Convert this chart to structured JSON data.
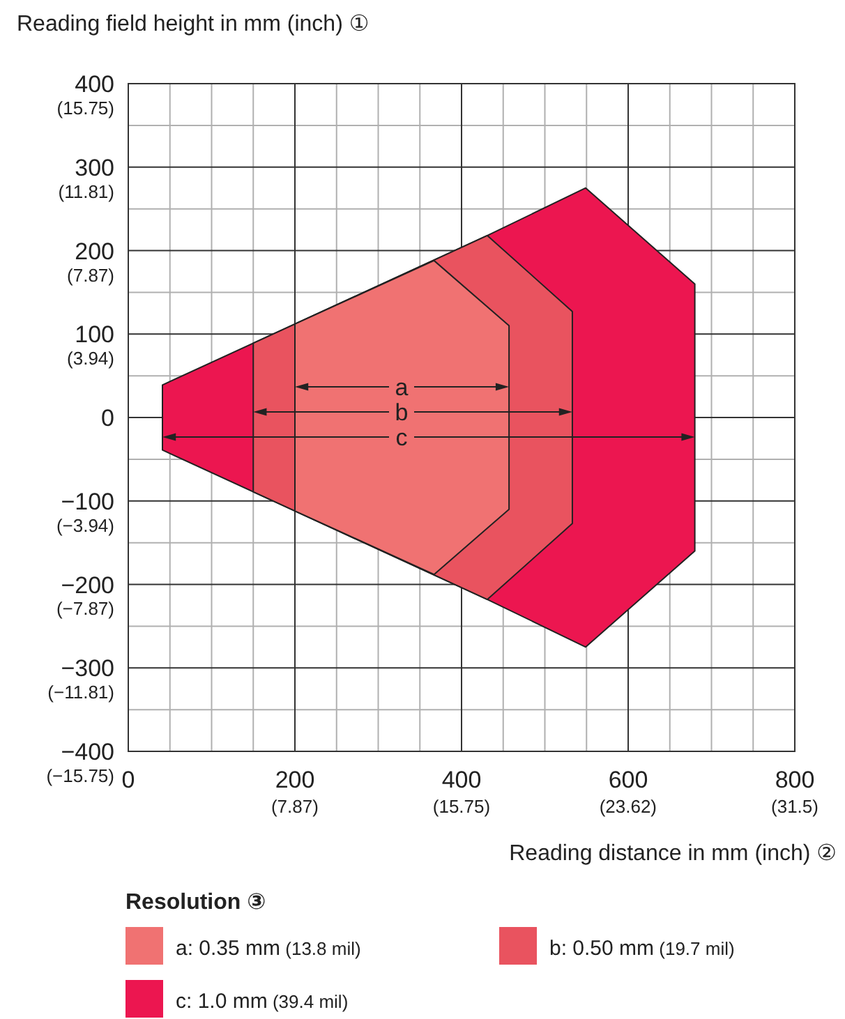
{
  "chart_data": {
    "type": "area",
    "xlabel": "Reading distance in mm (inch) ②",
    "ylabel": "Reading field height in mm (inch) ①",
    "legend_title": "Resolution ③",
    "xlim": [
      0,
      800
    ],
    "ylim": [
      -400,
      400
    ],
    "xticks": [
      0,
      200,
      400,
      600,
      800
    ],
    "yticks": [
      {
        "value": -400,
        "label": "−400"
      },
      {
        "value": -300,
        "label": "−300"
      },
      {
        "value": -200,
        "label": "−200"
      },
      {
        "value": -100,
        "label": "−100"
      },
      0,
      100,
      200,
      300,
      400
    ],
    "x2lim": [
      0,
      31.5
    ],
    "x2ticks": [
      {
        "value": 7.87,
        "label": "(7.87)"
      },
      {
        "value": 15.75,
        "label": "(15.75)"
      },
      {
        "value": 23.62,
        "label": "(23.62)"
      },
      {
        "value": 31.5,
        "label": "(31.5)"
      }
    ],
    "y2lim": [
      -15.75,
      15.75
    ],
    "y2ticks": [
      {
        "value": -15.75,
        "label": "(−15.75)"
      },
      {
        "value": -11.81,
        "label": "(−11.81)"
      },
      {
        "value": -7.87,
        "label": "(−7.87)"
      },
      {
        "value": -3.94,
        "label": "(−3.94)"
      },
      {
        "value": 3.94,
        "label": "(3.94)"
      },
      {
        "value": 7.87,
        "label": "(7.87)"
      },
      {
        "value": 11.81,
        "label": "(11.81)"
      },
      {
        "value": 15.75,
        "label": "(15.75)"
      }
    ],
    "grid": true,
    "legend": "bottom",
    "series": [
      {
        "name": "a: 0.35 mm (13.8 mil)",
        "color": "#f07272",
        "x": [
          200,
          367,
          457
        ],
        "values": [
          112,
          188,
          110
        ]
      },
      {
        "color": "#f07272",
        "x": [
          200,
          367,
          457
        ],
        "values": [
          -112,
          -188,
          -110
        ]
      },
      {
        "name": "b: 0.50 mm (19.7 mil)",
        "color": "#e9535f",
        "x": [
          150,
          431,
          533
        ],
        "values": [
          89,
          218,
          127
        ]
      },
      {
        "color": "#e9535f",
        "x": [
          150,
          431,
          533
        ],
        "values": [
          -89,
          -218,
          -127
        ]
      },
      {
        "name": "c: 1.0 mm (39.4 mil)",
        "color": "#ec1650",
        "x": [
          41,
          431,
          549,
          680
        ],
        "values": [
          39,
          218,
          275,
          160
        ]
      },
      {
        "color": "#ec1650",
        "x": [
          41,
          431,
          549,
          680
        ],
        "values": [
          -39,
          -218,
          -275,
          -160
        ]
      }
    ],
    "annotations": [
      "a",
      "b",
      "c"
    ]
  }
}
